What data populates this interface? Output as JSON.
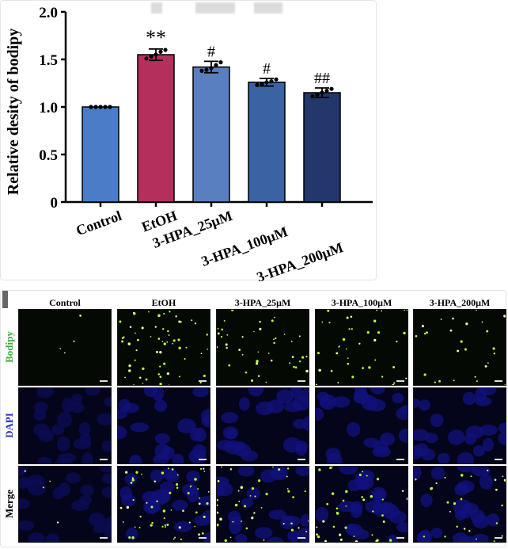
{
  "chart_data": {
    "type": "bar",
    "ylabel": "Relative desity of bodipy",
    "ylim": [
      0,
      2.0
    ],
    "yticks": [
      "0",
      "0.5",
      "1.0",
      "1.5",
      "2.0"
    ],
    "categories": [
      "Control",
      "EtOH",
      "3-HPA_25μM",
      "3-HPA_100μM",
      "3-HPA_200μM"
    ],
    "values": [
      1.0,
      1.55,
      1.42,
      1.26,
      1.15
    ],
    "errors": [
      0.0,
      0.06,
      0.06,
      0.04,
      0.05
    ],
    "points": [
      [
        1.0,
        1.0,
        1.0,
        1.0,
        1.0
      ],
      [
        1.51,
        1.53,
        1.55,
        1.58,
        1.6
      ],
      [
        1.38,
        1.39,
        1.41,
        1.44,
        1.47
      ],
      [
        1.23,
        1.24,
        1.26,
        1.27,
        1.29
      ],
      [
        1.11,
        1.13,
        1.15,
        1.17,
        1.19
      ]
    ],
    "annotations": [
      "",
      "**",
      "#",
      "#",
      "##"
    ],
    "colors": [
      "#4a7cc8",
      "#b52f5c",
      "#5a7fc0",
      "#3b62a3",
      "#24376d"
    ]
  },
  "micrographs": {
    "columns": [
      "Control",
      "EtOH",
      "3-HPA_25μM",
      "3-HPA_100μM",
      "3-HPA_200μM"
    ],
    "rows": [
      {
        "label": "Bodipy",
        "color": "#3fae3f"
      },
      {
        "label": "DAPI",
        "color": "#2b2bcf"
      },
      {
        "label": "Merge",
        "color": "#000000"
      }
    ]
  }
}
